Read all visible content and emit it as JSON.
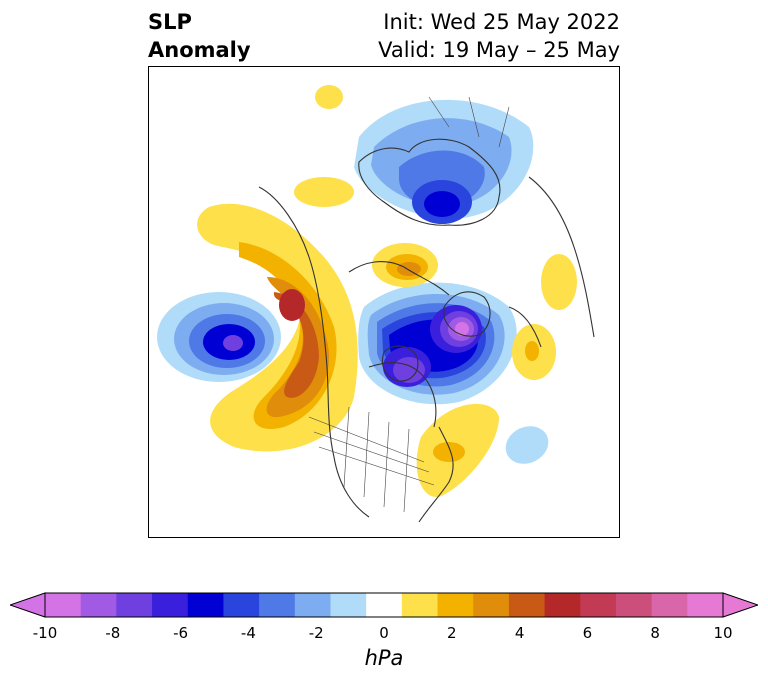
{
  "title": {
    "left_line1": "SLP",
    "left_line2": "Anomaly",
    "right_line1": "Init: Wed 25 May 2022",
    "right_line2": "Valid: 19 May – 25 May"
  },
  "colorbar": {
    "unit": "hPa",
    "ticks": [
      "-10",
      "-8",
      "-6",
      "-4",
      "-2",
      "0",
      "2",
      "4",
      "6",
      "8",
      "10"
    ],
    "levels": [
      -10,
      -9,
      -8,
      -7,
      -6,
      -5,
      -4,
      -3,
      -2,
      -1,
      1,
      2,
      3,
      4,
      5,
      6,
      7,
      8,
      9,
      10
    ],
    "colors": [
      "#d473e6",
      "#a15ae3",
      "#6f3fe0",
      "#3a20dc",
      "#0000d4",
      "#2a45dd",
      "#4f79e6",
      "#7dadf0",
      "#b0dcf9",
      "#ffffff",
      "#fde04a",
      "#f3b200",
      "#e08d0b",
      "#c85a16",
      "#b4282a",
      "#c33a55",
      "#cc4f7b",
      "#d866a8",
      "#e679d3"
    ],
    "extend_low_color": "#d473e6",
    "extend_high_color": "#e679d3"
  }
}
